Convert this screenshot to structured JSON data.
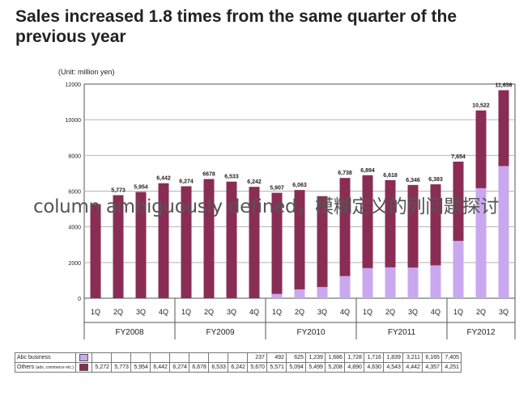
{
  "header": {
    "title": "Sales increased 1.8 times from the same quarter of the previous year",
    "unit": "(Unit: million yen)"
  },
  "overlay_text": "column ambiguously defined，模糊定义的列问题探讨",
  "colors": {
    "abc": "#c9a8f0",
    "others": "#8a2d55",
    "grid": "#b5b5b5",
    "axis": "#555555"
  },
  "chart_data": {
    "type": "bar",
    "stacked": true,
    "ylim": [
      0,
      12000
    ],
    "yticks": [
      0,
      2000,
      4000,
      6000,
      8000,
      10000,
      12000
    ],
    "grid": true,
    "categories": [
      "1Q",
      "2Q",
      "3Q",
      "4Q",
      "1Q",
      "2Q",
      "3Q",
      "4Q",
      "1Q",
      "2Q",
      "3Q",
      "4Q",
      "1Q",
      "2Q",
      "3Q",
      "4Q",
      "1Q",
      "2Q",
      "3Q"
    ],
    "groups": [
      {
        "label": "FY2008",
        "count": 4
      },
      {
        "label": "FY2009",
        "count": 4
      },
      {
        "label": "FY2010",
        "count": 4
      },
      {
        "label": "FY2011",
        "count": 4
      },
      {
        "label": "FY2012",
        "count": 3
      }
    ],
    "totals": [
      "",
      "5,773",
      "5,954",
      "6,442",
      "6,274",
      "6678",
      "6,533",
      "6,242",
      "5,907",
      "6,063",
      "",
      "6,738",
      "6,894",
      "6,618",
      "6,346",
      "6,383",
      "7,654",
      "10,522",
      "11,656"
    ],
    "series": [
      {
        "name": "Abc business",
        "values": [
          null,
          null,
          null,
          null,
          null,
          null,
          null,
          null,
          237,
          492,
          625,
          1239,
          1686,
          1728,
          1716,
          1839,
          3211,
          6165,
          7405
        ]
      },
      {
        "name": "Others",
        "values": [
          5272,
          5773,
          5954,
          6442,
          6274,
          6678,
          6533,
          6242,
          5670,
          5571,
          5094,
          5499,
          5208,
          4890,
          4630,
          4543,
          4442,
          4357,
          4251
        ]
      }
    ]
  },
  "table": {
    "rows": [
      {
        "label": "Abc business",
        "values": [
          "",
          "",
          "",
          "",
          "",
          "",
          "",
          "",
          "237",
          "492",
          "625",
          "1,239",
          "1,686",
          "1,728",
          "1,716",
          "1,839",
          "3,211",
          "6,165",
          "7,405"
        ]
      },
      {
        "label": "Others",
        "sublabel": "(ads, commerce etc.)",
        "values": [
          "5,272",
          "5,773",
          "5,954",
          "6,442",
          "6,274",
          "6,678",
          "6,533",
          "6,242",
          "5,670",
          "5,571",
          "5,094",
          "5,499",
          "5,208",
          "4,890",
          "4,630",
          "4,543",
          "4,442",
          "4,357",
          "4,251"
        ]
      }
    ]
  }
}
